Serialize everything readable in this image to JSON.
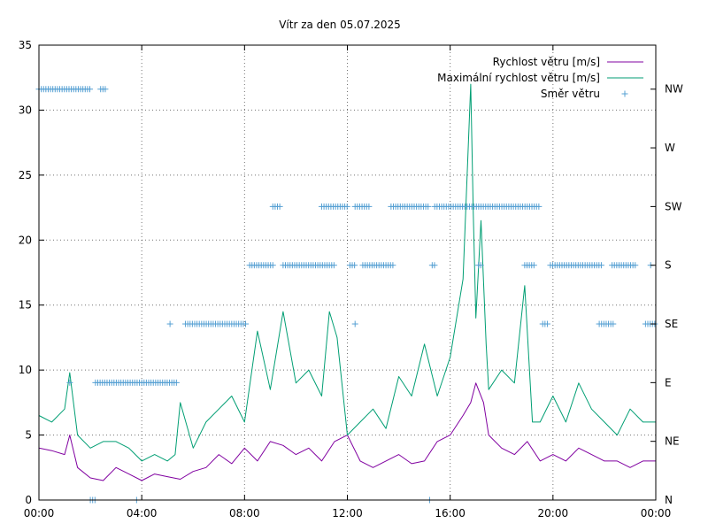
{
  "chart_data": {
    "type": "line",
    "title": "Vítr za den 05.07.2025",
    "xlabel": "",
    "ylabel": "",
    "x_ticks": [
      "00:00",
      "04:00",
      "08:00",
      "12:00",
      "16:00",
      "20:00",
      "00:00"
    ],
    "x_range_hours": [
      0,
      24
    ],
    "y_ticks": [
      "0",
      "5",
      "10",
      "15",
      "20",
      "25",
      "30",
      "35"
    ],
    "ylim": [
      0,
      35
    ],
    "y2_ticks": [
      "N",
      "NE",
      "E",
      "SE",
      "S",
      "SW",
      "W",
      "NW"
    ],
    "y2lim": [
      0,
      7.75
    ],
    "grid": true,
    "legend_position": "top-right",
    "series": [
      {
        "name": "Rychlost větru [m/s]",
        "color": "#8000a0",
        "axis": "left",
        "kind": "line",
        "x_hours": [
          0,
          0.5,
          1,
          1.2,
          1.5,
          2,
          2.5,
          3,
          3.5,
          4,
          4.5,
          5,
          5.5,
          6,
          6.5,
          7,
          7.5,
          8,
          8.5,
          9,
          9.5,
          10,
          10.5,
          11,
          11.5,
          12,
          12.5,
          13,
          13.5,
          14,
          14.5,
          15,
          15.5,
          16,
          16.5,
          16.8,
          17,
          17.3,
          17.5,
          18,
          18.5,
          19,
          19.5,
          20,
          20.5,
          21,
          21.5,
          22,
          22.5,
          23,
          23.5,
          24
        ],
        "values": [
          4,
          3.8,
          3.5,
          5,
          2.5,
          1.7,
          1.5,
          2.5,
          2,
          1.5,
          2,
          1.8,
          1.6,
          2.2,
          2.5,
          3.5,
          2.8,
          4,
          3,
          4.5,
          4.2,
          3.5,
          4,
          3,
          4.5,
          5,
          3,
          2.5,
          3,
          3.5,
          2.8,
          3,
          4.5,
          5,
          6.5,
          7.5,
          9,
          7.5,
          5,
          4,
          3.5,
          4.5,
          3,
          3.5,
          3,
          4,
          3.5,
          3,
          3,
          2.5,
          3,
          3
        ]
      },
      {
        "name": "Maximální rychlost větru [m/s]",
        "color": "#009e73",
        "axis": "left",
        "kind": "line",
        "x_hours": [
          0,
          0.5,
          1,
          1.2,
          1.5,
          2,
          2.5,
          3,
          3.5,
          4,
          4.5,
          5,
          5.3,
          5.5,
          6,
          6.5,
          7,
          7.5,
          8,
          8.5,
          9,
          9.5,
          10,
          10.5,
          11,
          11.3,
          11.6,
          12,
          12.5,
          13,
          13.5,
          14,
          14.5,
          15,
          15.5,
          16,
          16.5,
          16.8,
          16.9,
          17,
          17.2,
          17.4,
          17.5,
          18,
          18.5,
          18.9,
          19.2,
          19.5,
          20,
          20.5,
          21,
          21.5,
          22,
          22.5,
          23,
          23.5,
          24
        ],
        "values": [
          6.5,
          6,
          7,
          9.8,
          5,
          4,
          4.5,
          4.5,
          4,
          3,
          3.5,
          3,
          3.5,
          7.5,
          4,
          6,
          7,
          8,
          6,
          13,
          8.5,
          14.5,
          9,
          10,
          8,
          14.5,
          12.5,
          5,
          6,
          7,
          5.5,
          9.5,
          8,
          12,
          8,
          11,
          17,
          32,
          22,
          14,
          21.5,
          12,
          8.5,
          10,
          9,
          16.5,
          6,
          6,
          8,
          6,
          9,
          7,
          6,
          5,
          7,
          6,
          6
        ]
      },
      {
        "name": "Směr větru",
        "color": "#56a0d3",
        "axis": "right",
        "kind": "points",
        "points": [
          {
            "x_start": 0.0,
            "x_end": 2.0,
            "direction": "NW"
          },
          {
            "x_start": 2.4,
            "x_end": 2.6,
            "direction": "NW"
          },
          {
            "x_start": 1.2,
            "x_end": 1.2,
            "direction": "E"
          },
          {
            "x_start": 2.2,
            "x_end": 5.4,
            "direction": "E"
          },
          {
            "x_start": 2.0,
            "x_end": 2.2,
            "direction": "N"
          },
          {
            "x_start": 3.8,
            "x_end": 3.8,
            "direction": "N"
          },
          {
            "x_start": 5.1,
            "x_end": 5.1,
            "direction": "SE"
          },
          {
            "x_start": 5.7,
            "x_end": 8.1,
            "direction": "SE"
          },
          {
            "x_start": 8.2,
            "x_end": 9.1,
            "direction": "S"
          },
          {
            "x_start": 9.1,
            "x_end": 9.4,
            "direction": "SW"
          },
          {
            "x_start": 9.5,
            "x_end": 11.5,
            "direction": "S"
          },
          {
            "x_start": 11.0,
            "x_end": 12.0,
            "direction": "SW"
          },
          {
            "x_start": 12.1,
            "x_end": 12.3,
            "direction": "S"
          },
          {
            "x_start": 12.3,
            "x_end": 12.3,
            "direction": "SE"
          },
          {
            "x_start": 12.3,
            "x_end": 12.9,
            "direction": "SW"
          },
          {
            "x_start": 12.6,
            "x_end": 13.8,
            "direction": "S"
          },
          {
            "x_start": 13.7,
            "x_end": 15.2,
            "direction": "SW"
          },
          {
            "x_start": 15.2,
            "x_end": 15.2,
            "direction": "N"
          },
          {
            "x_start": 15.3,
            "x_end": 15.4,
            "direction": "S"
          },
          {
            "x_start": 15.4,
            "x_end": 19.5,
            "direction": "SW"
          },
          {
            "x_start": 17.1,
            "x_end": 17.2,
            "direction": "S"
          },
          {
            "x_start": 18.9,
            "x_end": 19.3,
            "direction": "S"
          },
          {
            "x_start": 19.6,
            "x_end": 19.8,
            "direction": "SE"
          },
          {
            "x_start": 19.9,
            "x_end": 21.9,
            "direction": "S"
          },
          {
            "x_start": 21.8,
            "x_end": 22.4,
            "direction": "SE"
          },
          {
            "x_start": 22.3,
            "x_end": 23.2,
            "direction": "S"
          },
          {
            "x_start": 23.6,
            "x_end": 24.0,
            "direction": "SE"
          },
          {
            "x_start": 23.8,
            "x_end": 23.8,
            "direction": "S"
          }
        ]
      }
    ]
  }
}
